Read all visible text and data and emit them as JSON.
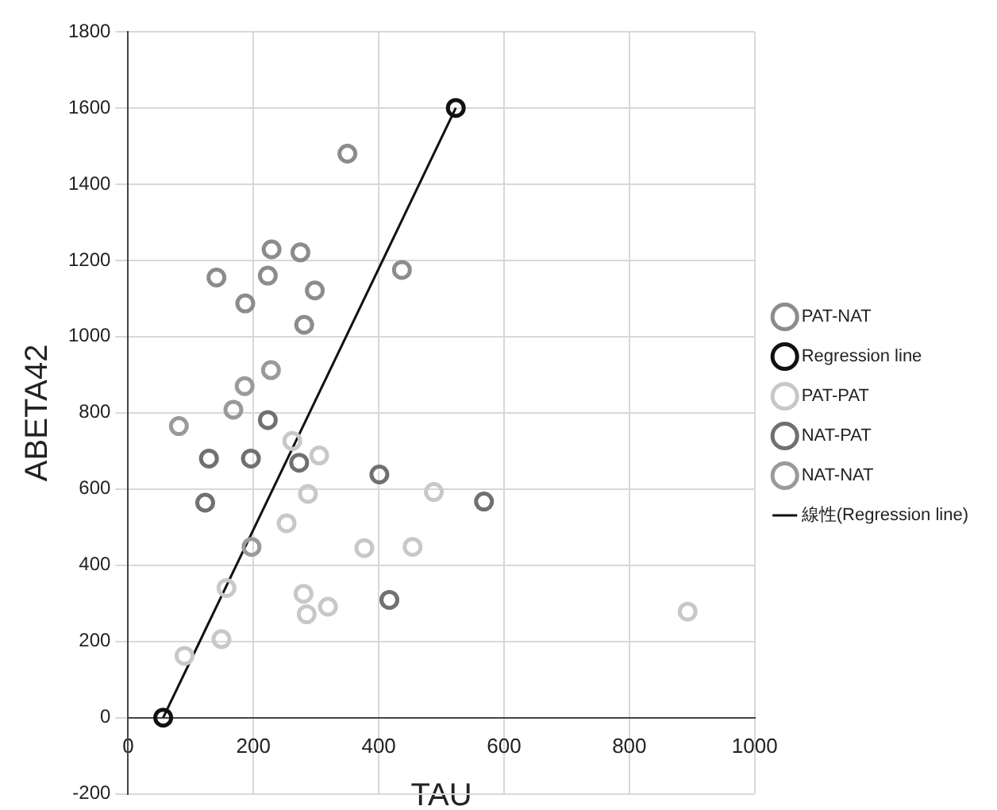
{
  "chart_data": {
    "type": "scatter",
    "xlabel": "TAU",
    "ylabel": "ABETA42",
    "xlim": [
      0,
      1000
    ],
    "xticks": [
      0,
      200,
      400,
      600,
      800,
      1000
    ],
    "ylim": [
      -200,
      1800
    ],
    "yticks": [
      -200,
      0,
      200,
      400,
      600,
      800,
      1000,
      1200,
      1400,
      1600,
      1800
    ],
    "grid": true,
    "legend": "right",
    "marker": "circle",
    "series": [
      {
        "name": "PAT-NAT",
        "color": "#8c8c8c",
        "x": [
          350,
          437,
          229,
          275,
          141,
          223,
          298,
          187,
          281
        ],
        "values": [
          1480,
          1175,
          1229,
          1221,
          1155,
          1160,
          1121,
          1087,
          1031
        ]
      },
      {
        "name": "Regression line",
        "color": "#111111",
        "x": [
          56,
          523
        ],
        "values": [
          0,
          1600
        ]
      },
      {
        "name": "PAT-PAT",
        "color": "#c8c8c8",
        "x": [
          157,
          90,
          149,
          280,
          285,
          319,
          287,
          305,
          253,
          377,
          454,
          488,
          893,
          262
        ],
        "values": [
          340,
          162,
          206,
          325,
          271,
          291,
          587,
          688,
          510,
          445,
          448,
          592,
          278,
          726
        ]
      },
      {
        "name": "NAT-PAT",
        "color": "#707070",
        "x": [
          223,
          129,
          123,
          568,
          417,
          401,
          196,
          273
        ],
        "values": [
          781,
          680,
          564,
          567,
          309,
          638,
          680,
          669
        ]
      },
      {
        "name": "NAT-NAT",
        "color": "#9a9a9a",
        "x": [
          228,
          186,
          168,
          81,
          197
        ],
        "values": [
          912,
          870,
          808,
          765,
          448
        ]
      },
      {
        "name": "線性(Regression line)",
        "type": "line",
        "color": "#111111",
        "marker": "none",
        "x": [
          56,
          523
        ],
        "values": [
          0,
          1600
        ]
      }
    ]
  }
}
